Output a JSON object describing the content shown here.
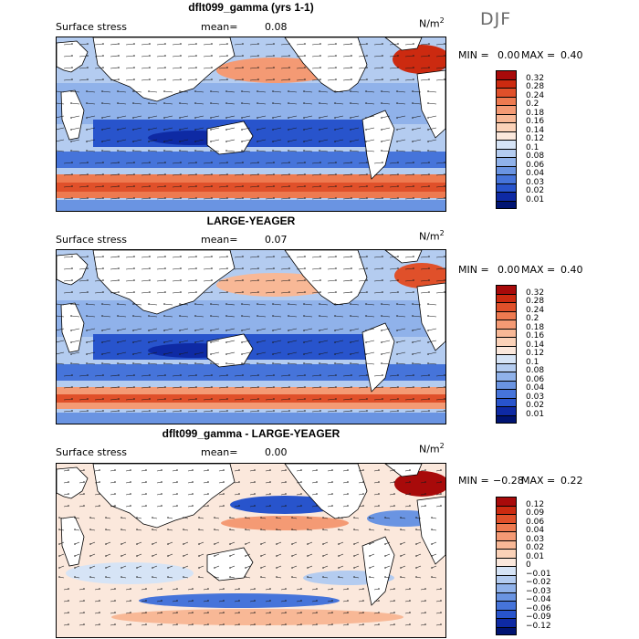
{
  "season": "DJF",
  "units_label": "N/m",
  "units_exp": "2",
  "panels": [
    {
      "title": "dflt099_gamma (yrs 1-1)",
      "subtitle": "Surface stress",
      "mean_label": "mean=",
      "mean": "0.08",
      "min_label": "MIN =",
      "min": "0.00",
      "max_label": "MAX =",
      "max": "0.40"
    },
    {
      "title": "LARGE-YEAGER",
      "subtitle": "Surface stress",
      "mean_label": "mean=",
      "mean": "0.07",
      "min_label": "MIN =",
      "min": "0.00",
      "max_label": "MAX =",
      "max": "0.40"
    },
    {
      "title": "dflt099_gamma - LARGE-YEAGER",
      "subtitle": "Surface stress",
      "mean_label": "mean=",
      "mean": "0.00",
      "min_label": "MIN =",
      "min": "−0.28",
      "max_label": "MAX =",
      "max": "0.22"
    }
  ],
  "chart_data": [
    {
      "type": "heatmap",
      "title": "dflt099_gamma (yrs 1-1)",
      "subtitle": "Surface stress",
      "units": "N/m2",
      "mean": 0.08,
      "min": 0.0,
      "max": 0.4,
      "colorbar_levels": [
        "0.32",
        "0.28",
        "0.24",
        "0.2",
        "0.18",
        "0.16",
        "0.14",
        "0.12",
        "0.1",
        "0.08",
        "0.06",
        "0.04",
        "0.03",
        "0.02",
        "0.01"
      ],
      "colorbar_colors": [
        "#a80a0a",
        "#cc2a10",
        "#e0502a",
        "#ee7a50",
        "#f49a74",
        "#f8b896",
        "#fbd2b8",
        "#fbe8dc",
        "#d6e4f6",
        "#b4ccf0",
        "#90b2ea",
        "#6a94e2",
        "#4674da",
        "#2854cc",
        "#0e2aa4",
        "#001472"
      ]
    },
    {
      "type": "heatmap",
      "title": "LARGE-YEAGER",
      "subtitle": "Surface stress",
      "units": "N/m2",
      "mean": 0.07,
      "min": 0.0,
      "max": 0.4,
      "colorbar_levels": [
        "0.32",
        "0.28",
        "0.24",
        "0.2",
        "0.18",
        "0.16",
        "0.14",
        "0.12",
        "0.1",
        "0.08",
        "0.06",
        "0.04",
        "0.03",
        "0.02",
        "0.01"
      ],
      "colorbar_colors": [
        "#a80a0a",
        "#cc2a10",
        "#e0502a",
        "#ee7a50",
        "#f49a74",
        "#f8b896",
        "#fbd2b8",
        "#fbe8dc",
        "#d6e4f6",
        "#b4ccf0",
        "#90b2ea",
        "#6a94e2",
        "#4674da",
        "#2854cc",
        "#0e2aa4",
        "#001472"
      ]
    },
    {
      "type": "heatmap",
      "title": "dflt099_gamma - LARGE-YEAGER",
      "subtitle": "Surface stress",
      "units": "N/m2",
      "mean": 0.0,
      "min": -0.28,
      "max": 0.22,
      "colorbar_levels": [
        "0.12",
        "0.09",
        "0.06",
        "0.04",
        "0.03",
        "0.02",
        "0.01",
        "0",
        "−0.01",
        "−0.02",
        "−0.03",
        "−0.04",
        "−0.06",
        "−0.09",
        "−0.12"
      ],
      "colorbar_colors": [
        "#a80a0a",
        "#cc2a10",
        "#e0502a",
        "#ee7a50",
        "#f49a74",
        "#f8b896",
        "#fbd2b8",
        "#fbe8dc",
        "#d6e4f6",
        "#b4ccf0",
        "#90b2ea",
        "#6a94e2",
        "#4674da",
        "#2854cc",
        "#0e2aa4",
        "#001472"
      ]
    }
  ]
}
